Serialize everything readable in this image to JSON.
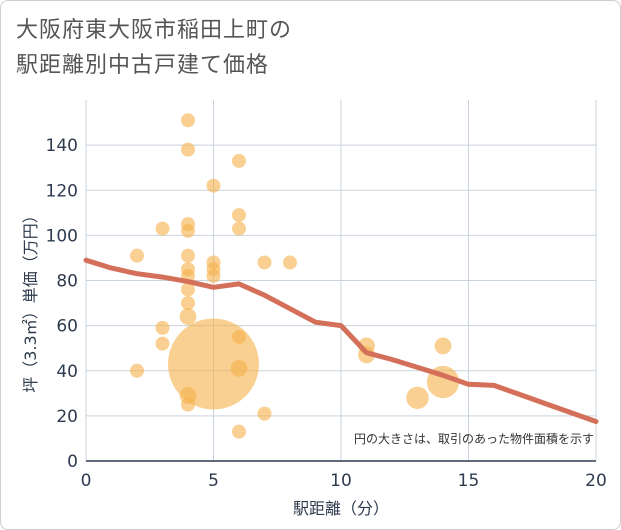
{
  "colors": {
    "bubble": "#f5b04a",
    "trend": "#d4705a",
    "grid": "#c9d3dd",
    "plot_bg": "#ffffff"
  },
  "chart_data": {
    "type": "scatter",
    "title_lines": [
      "大阪府東大阪市稲田上町の",
      "駅距離別中古戸建て価格"
    ],
    "xlabel": "駅距離（分）",
    "ylabel": "坪（3.3㎡）単価（万円）",
    "xlim": [
      0,
      20
    ],
    "ylim": [
      0,
      160
    ],
    "x_ticks": [
      0,
      5,
      10,
      15,
      20
    ],
    "y_ticks": [
      0,
      20,
      40,
      60,
      80,
      100,
      120,
      140
    ],
    "note": "円の大きさは、取引のあった物件面積を示す",
    "points": [
      {
        "x": 2,
        "y": 91,
        "size": 1
      },
      {
        "x": 2,
        "y": 40,
        "size": 1
      },
      {
        "x": 3,
        "y": 103,
        "size": 1
      },
      {
        "x": 3,
        "y": 59,
        "size": 1
      },
      {
        "x": 3,
        "y": 52,
        "size": 1
      },
      {
        "x": 4,
        "y": 151,
        "size": 1
      },
      {
        "x": 4,
        "y": 138,
        "size": 1
      },
      {
        "x": 4,
        "y": 105,
        "size": 1
      },
      {
        "x": 4,
        "y": 102,
        "size": 1
      },
      {
        "x": 4,
        "y": 91,
        "size": 1
      },
      {
        "x": 4,
        "y": 85,
        "size": 1
      },
      {
        "x": 4,
        "y": 82,
        "size": 1
      },
      {
        "x": 4,
        "y": 76,
        "size": 1
      },
      {
        "x": 4,
        "y": 70,
        "size": 1
      },
      {
        "x": 4,
        "y": 64,
        "size": 1.2
      },
      {
        "x": 4,
        "y": 29,
        "size": 1.2
      },
      {
        "x": 4,
        "y": 25,
        "size": 1
      },
      {
        "x": 5,
        "y": 122,
        "size": 1
      },
      {
        "x": 5,
        "y": 88,
        "size": 1
      },
      {
        "x": 5,
        "y": 85,
        "size": 1
      },
      {
        "x": 5,
        "y": 82,
        "size": 1
      },
      {
        "x": 5,
        "y": 43,
        "size": 6.5
      },
      {
        "x": 6,
        "y": 133,
        "size": 1
      },
      {
        "x": 6,
        "y": 109,
        "size": 1
      },
      {
        "x": 6,
        "y": 103,
        "size": 1
      },
      {
        "x": 6,
        "y": 55,
        "size": 1
      },
      {
        "x": 6,
        "y": 41,
        "size": 1.2
      },
      {
        "x": 6,
        "y": 13,
        "size": 1
      },
      {
        "x": 7,
        "y": 88,
        "size": 1
      },
      {
        "x": 7,
        "y": 21,
        "size": 1
      },
      {
        "x": 8,
        "y": 88,
        "size": 1
      },
      {
        "x": 11,
        "y": 51,
        "size": 1.2
      },
      {
        "x": 11,
        "y": 47,
        "size": 1.2
      },
      {
        "x": 13,
        "y": 28,
        "size": 1.6
      },
      {
        "x": 14,
        "y": 51,
        "size": 1.2
      },
      {
        "x": 14,
        "y": 35,
        "size": 2.3
      }
    ],
    "trend": {
      "x": [
        0,
        1,
        2,
        3,
        4,
        5,
        6,
        7,
        8,
        9,
        10,
        11,
        12,
        13,
        14,
        15,
        16,
        17,
        18,
        19,
        20
      ],
      "y": [
        89,
        85.5,
        83,
        81.5,
        79.5,
        77,
        78.5,
        73.5,
        67.5,
        61.5,
        60,
        48,
        45,
        41.5,
        38,
        34,
        33.5,
        29.5,
        25.5,
        21.5,
        17.5
      ]
    }
  }
}
